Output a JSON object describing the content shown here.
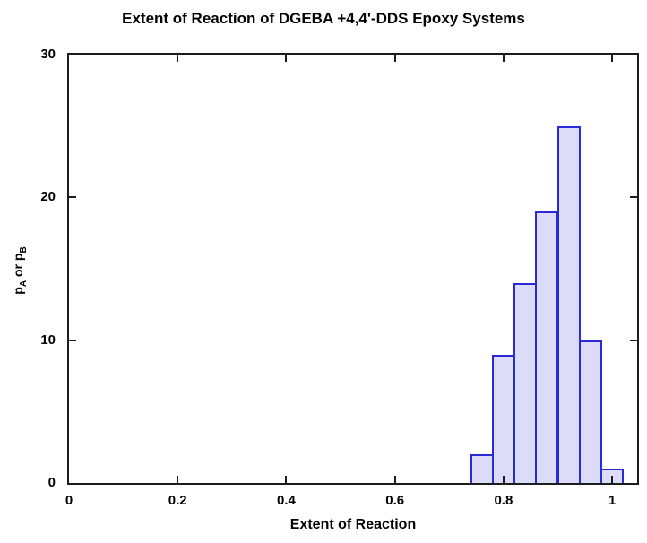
{
  "chart_data": {
    "type": "bar",
    "subtype": "histogram",
    "title": "Extent of Reaction of DGEBA +4,4'-DDS Epoxy Systems",
    "xlabel": "Extent of Reaction",
    "ylabel": "pA or pB",
    "ylabel_parts": [
      {
        "t": "p"
      },
      {
        "s": "A"
      },
      {
        "t": " or p"
      },
      {
        "s": "B"
      }
    ],
    "bin_edges": [
      0.74,
      0.78,
      0.82,
      0.86,
      0.9,
      0.94,
      0.98,
      1.02
    ],
    "bin_centers": [
      0.76,
      0.8,
      0.84,
      0.88,
      0.92,
      0.96,
      1.0
    ],
    "counts": [
      2,
      9,
      14,
      19,
      25,
      10,
      1
    ],
    "xlim": [
      0,
      1.046
    ],
    "ylim": [
      0,
      30
    ],
    "x_ticks": [
      {
        "v": 0,
        "label": "0"
      },
      {
        "v": 0.2,
        "label": "0.2"
      },
      {
        "v": 0.4,
        "label": "0.4"
      },
      {
        "v": 0.6,
        "label": "0.6"
      },
      {
        "v": 0.8,
        "label": "0.8"
      },
      {
        "v": 1,
        "label": "1"
      }
    ],
    "y_ticks": [
      {
        "v": 0,
        "label": "0"
      },
      {
        "v": 10,
        "label": "10"
      },
      {
        "v": 20,
        "label": "20"
      },
      {
        "v": 30,
        "label": "30"
      }
    ],
    "grid": false,
    "legend": null,
    "tick_style": "inward, mirrored on top and right frame edges",
    "colors": {
      "bar_fill": "#dcdcf8",
      "bar_border": "#2a2ad8",
      "axis": "#1c1c1c",
      "text": "#000000",
      "background": "#ffffff"
    }
  }
}
